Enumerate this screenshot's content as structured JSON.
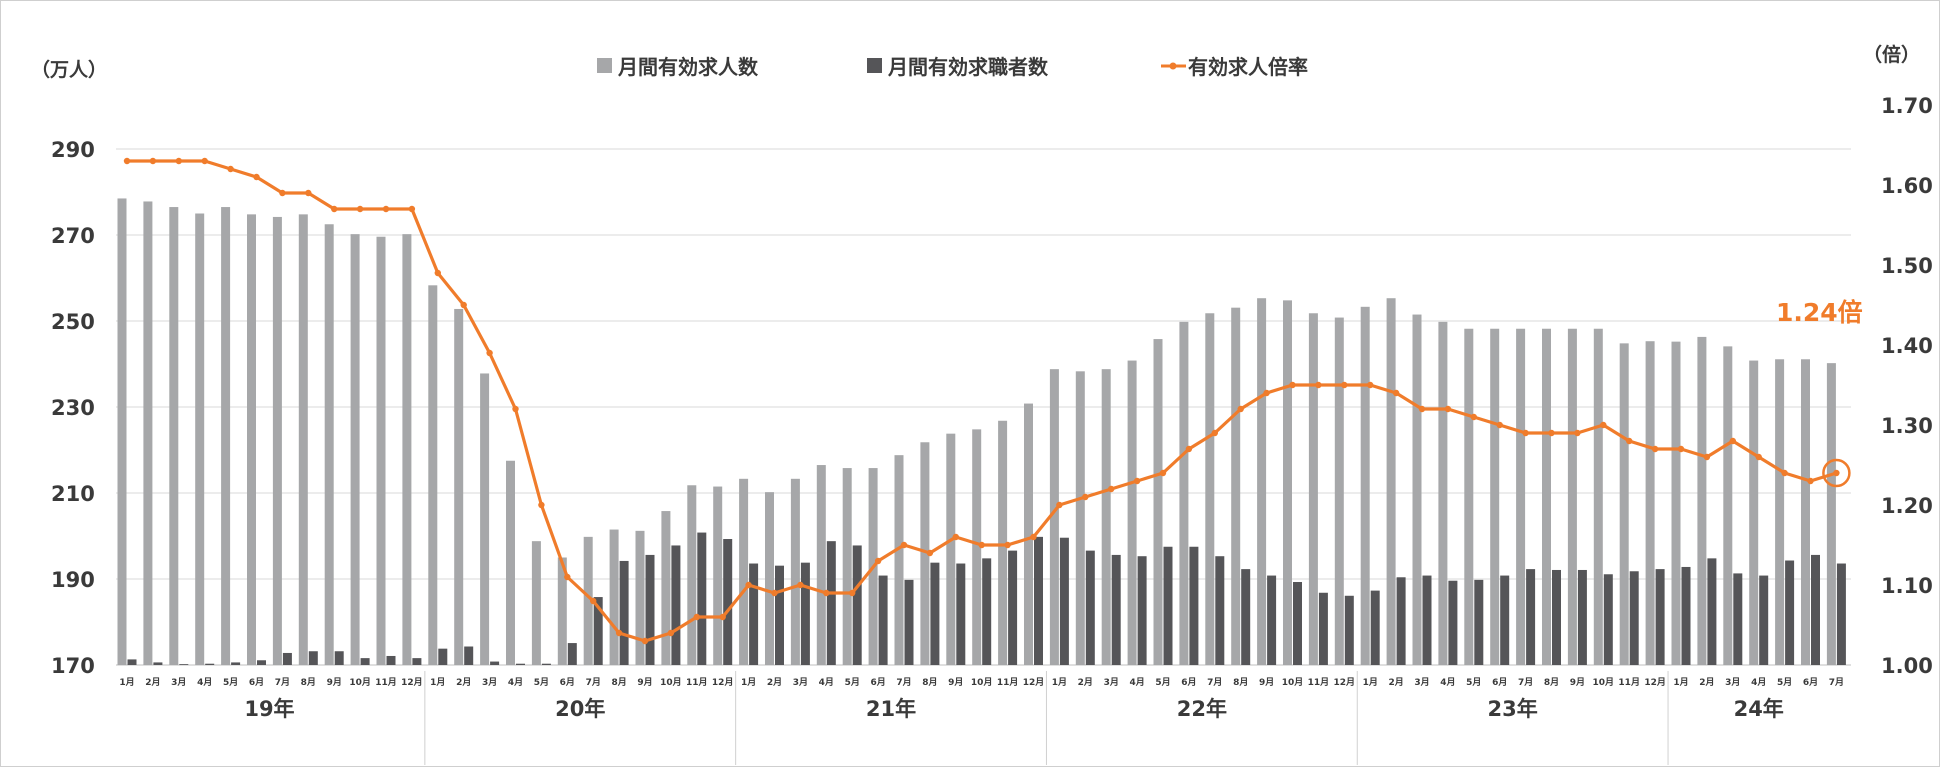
{
  "chart_data": {
    "type": "bar",
    "left_axis_unit": "（万人）",
    "right_axis_unit": "（倍）",
    "ylim_left": [
      170,
      290
    ],
    "ylim_right": [
      1.0,
      1.7
    ],
    "yticks_left": [
      "170",
      "190",
      "210",
      "230",
      "250",
      "270",
      "290"
    ],
    "yticks_right": [
      "1.00",
      "1.10",
      "1.20",
      "1.30",
      "1.40",
      "1.50",
      "1.60",
      "1.70"
    ],
    "grid": true,
    "legend_position": "top",
    "months": [
      "1月",
      "2月",
      "3月",
      "4月",
      "5月",
      "6月",
      "7月",
      "8月",
      "9月",
      "10月",
      "11月",
      "12月",
      "1月",
      "2月",
      "3月",
      "4月",
      "5月",
      "6月",
      "7月",
      "8月",
      "9月",
      "10月",
      "11月",
      "12月",
      "1月",
      "2月",
      "3月",
      "4月",
      "5月",
      "6月",
      "7月",
      "8月",
      "9月",
      "10月",
      "11月",
      "12月",
      "1月",
      "2月",
      "3月",
      "4月",
      "5月",
      "6月",
      "7月",
      "8月",
      "9月",
      "10月",
      "11月",
      "12月",
      "1月",
      "2月",
      "3月",
      "4月",
      "5月",
      "6月",
      "7月",
      "8月",
      "9月",
      "10月",
      "11月",
      "12月",
      "1月",
      "2月",
      "3月",
      "4月",
      "5月",
      "6月",
      "7月"
    ],
    "years": [
      {
        "label": "19年",
        "start": 0,
        "count": 12
      },
      {
        "label": "20年",
        "start": 12,
        "count": 12
      },
      {
        "label": "21年",
        "start": 24,
        "count": 12
      },
      {
        "label": "22年",
        "start": 36,
        "count": 12
      },
      {
        "label": "23年",
        "start": 48,
        "count": 12
      },
      {
        "label": "24年",
        "start": 60,
        "count": 7
      }
    ],
    "series": [
      {
        "name": "月間有効求人数",
        "axis": "left",
        "kind": "bar",
        "color": "#a6a7a9",
        "values": [
          278.5,
          277.8,
          276.5,
          275,
          276.5,
          274.8,
          274.2,
          274.8,
          272.5,
          270.2,
          269.6,
          270.2,
          258.3,
          252.8,
          237.8,
          217.5,
          198.8,
          195,
          199.8,
          201.5,
          201.2,
          205.8,
          211.8,
          211.5,
          213.3,
          210.2,
          213.3,
          216.5,
          215.8,
          215.8,
          218.8,
          221.8,
          223.8,
          224.8,
          226.8,
          230.8,
          238.8,
          238.3,
          238.8,
          240.8,
          245.8,
          249.8,
          251.8,
          253.1,
          255.3,
          254.8,
          251.8,
          250.8,
          253.3,
          255.3,
          251.5,
          249.8,
          248.2,
          248.2,
          248.2,
          248.2,
          248.2,
          248.2,
          244.8,
          245.3,
          245.2,
          246.3,
          244.1,
          240.8,
          241.1,
          241.1,
          240.2
        ]
      },
      {
        "name": "月間有効求職者数",
        "axis": "left",
        "kind": "bar",
        "color": "#555558",
        "values": [
          171.3,
          170.6,
          170.2,
          170.3,
          170.6,
          171.1,
          172.8,
          173.2,
          173.2,
          171.6,
          172.1,
          171.6,
          173.8,
          174.3,
          170.8,
          170.3,
          170.3,
          175.1,
          185.8,
          194.2,
          195.6,
          197.8,
          200.8,
          199.3,
          193.6,
          193.1,
          193.8,
          198.8,
          197.8,
          190.8,
          189.8,
          193.8,
          193.6,
          194.8,
          196.6,
          199.8,
          199.6,
          196.6,
          195.6,
          195.3,
          197.5,
          197.5,
          195.3,
          192.3,
          190.8,
          189.3,
          186.8,
          186.1,
          187.3,
          190.4,
          190.8,
          189.6,
          189.8,
          190.8,
          192.3,
          192.1,
          192.1,
          191.1,
          191.8,
          192.3,
          192.8,
          194.8,
          191.3,
          190.8,
          194.3,
          195.6,
          193.6
        ]
      },
      {
        "name": "有効求人倍率",
        "axis": "right",
        "kind": "line",
        "color": "#f07c2b",
        "values": [
          1.63,
          1.63,
          1.63,
          1.63,
          1.62,
          1.61,
          1.59,
          1.59,
          1.57,
          1.57,
          1.57,
          1.57,
          1.49,
          1.45,
          1.39,
          1.32,
          1.2,
          1.11,
          1.08,
          1.04,
          1.03,
          1.04,
          1.06,
          1.06,
          1.1,
          1.09,
          1.1,
          1.09,
          1.09,
          1.13,
          1.15,
          1.14,
          1.16,
          1.15,
          1.15,
          1.16,
          1.2,
          1.21,
          1.22,
          1.23,
          1.24,
          1.27,
          1.29,
          1.32,
          1.34,
          1.35,
          1.35,
          1.35,
          1.35,
          1.34,
          1.32,
          1.32,
          1.31,
          1.3,
          1.29,
          1.29,
          1.29,
          1.3,
          1.28,
          1.27,
          1.27,
          1.26,
          1.28,
          1.26,
          1.24,
          1.23,
          1.24
        ]
      }
    ],
    "callout": {
      "text": "1.24倍",
      "color": "#f07c2b"
    }
  }
}
